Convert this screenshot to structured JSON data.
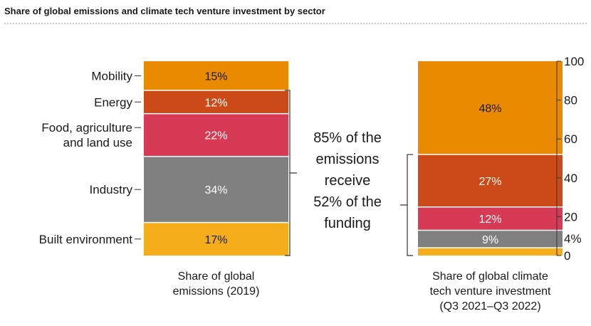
{
  "chart_data": {
    "type": "bar",
    "title": "Share of global emissions and climate tech venture investment by sector",
    "categories": [
      [
        "Share of global",
        "emissions (2019)"
      ],
      [
        "Share of global climate",
        "tech venture investment",
        "(Q3 2021–Q3 2022)"
      ]
    ],
    "series": [
      {
        "name": "Built environment",
        "values": [
          17,
          4
        ],
        "labels": [
          "17%",
          "4%"
        ],
        "label_lines": [
          "Built environment"
        ],
        "color": "#f5ad1c"
      },
      {
        "name": "Industry",
        "values": [
          34,
          9
        ],
        "labels": [
          "34%",
          "9%"
        ],
        "label_lines": [
          "Industry"
        ],
        "color": "#808080"
      },
      {
        "name": "Food, agriculture and land use",
        "values": [
          22,
          12
        ],
        "labels": [
          "22%",
          "12%"
        ],
        "label_lines": [
          "Food, agriculture",
          "and land use"
        ],
        "color": "#d63a54"
      },
      {
        "name": "Energy",
        "values": [
          12,
          27
        ],
        "labels": [
          "12%",
          "27%"
        ],
        "label_lines": [
          "Energy"
        ],
        "color": "#cc4a17"
      },
      {
        "name": "Mobility",
        "values": [
          15,
          48
        ],
        "labels": [
          "15%",
          "48%"
        ],
        "label_lines": [
          "Mobility"
        ],
        "color": "#ea8a00"
      }
    ],
    "label_colors": {
      "Built environment": "#1a1a1a",
      "Industry": "#ffffff",
      "Food, agriculture and land use": "#ffffff",
      "Energy": "#ffffff",
      "Mobility": "#1a1a1a"
    },
    "ylim": [
      0,
      100
    ],
    "yticks": [
      "0",
      "20",
      "40",
      "60",
      "80",
      "100"
    ],
    "annotation": [
      "85% of the",
      "emissions",
      "receive",
      "52% of the",
      "funding"
    ]
  }
}
